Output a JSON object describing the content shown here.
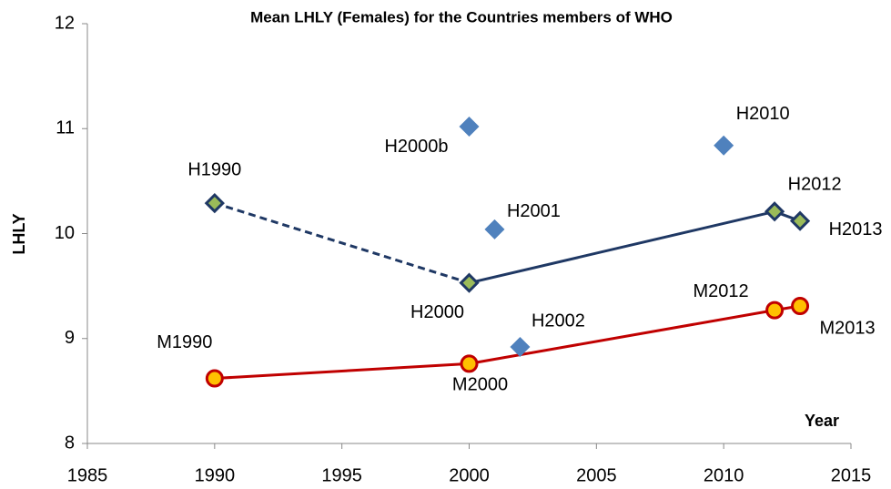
{
  "chart_data": {
    "type": "line",
    "title": "Mean LHLY (Females) for the Countries members of WHO",
    "y_label": "LHLY",
    "x_label": "Year",
    "xlim": [
      1985,
      2015
    ],
    "xticks": [
      1985,
      1990,
      1995,
      2000,
      2005,
      2010,
      2015
    ],
    "ylim": [
      8,
      12
    ],
    "yticks": [
      8,
      9,
      10,
      11,
      12
    ],
    "grid": false,
    "series": [
      {
        "x": [
          1990,
          2000,
          2012,
          2013
        ],
        "values": [
          10.29,
          9.53,
          10.21,
          10.12
        ],
        "labels": [
          "H1990",
          "H2000",
          "H2012",
          "H2013"
        ],
        "color": "#1f3864",
        "marker": "diamond",
        "marker_fill": "#9bbb59",
        "segment_styles": [
          "dashed",
          "solid",
          "solid"
        ]
      },
      {
        "x": [
          2000,
          2001,
          2002,
          2010
        ],
        "values": [
          11.02,
          10.04,
          8.92,
          10.84
        ],
        "labels": [
          "H2000b",
          "H2001",
          "H2002",
          "H2010"
        ],
        "color": "#4f81bd",
        "marker": "diamond",
        "marker_fill": "#4f81bd",
        "segment_styles": []
      },
      {
        "x": [
          1990,
          2000,
          2012,
          2013
        ],
        "values": [
          8.62,
          8.76,
          9.27,
          9.31
        ],
        "labels": [
          "M1990",
          "M2000",
          "M2012",
          "M2013"
        ],
        "color": "#c00000",
        "marker": "circle",
        "marker_fill": "#ffc000",
        "segment_styles": [
          "solid",
          "solid",
          "solid"
        ]
      }
    ]
  }
}
